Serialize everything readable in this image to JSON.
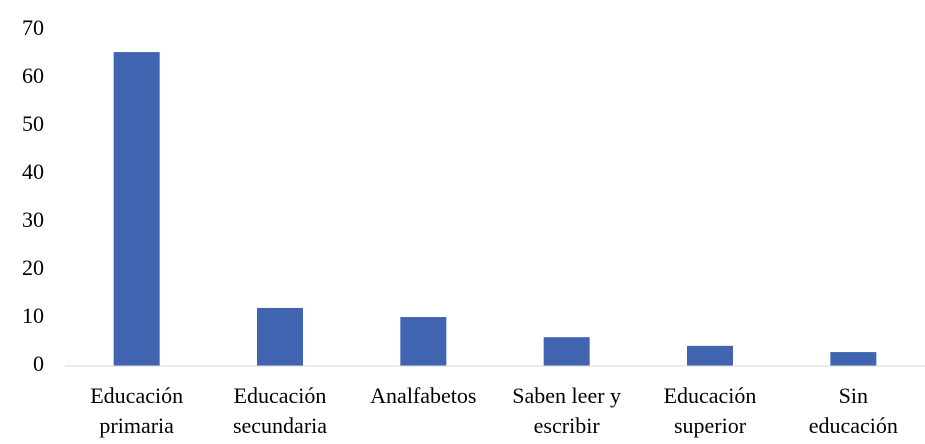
{
  "chart_data": {
    "type": "bar",
    "categories": [
      "Educación\nprimaria",
      "Educación\nsecundaria",
      "Analfabetos",
      "Saben leer y\nescribir",
      "Educación\nsuperior",
      "Sin\neducación"
    ],
    "values": [
      65.4,
      12.1,
      10.2,
      6.0,
      4.2,
      2.9
    ],
    "color": "#4064b0",
    "ylim": [
      0,
      70
    ],
    "yticks": [
      0,
      10,
      20,
      30,
      40,
      50,
      60,
      70
    ],
    "grid": false
  }
}
